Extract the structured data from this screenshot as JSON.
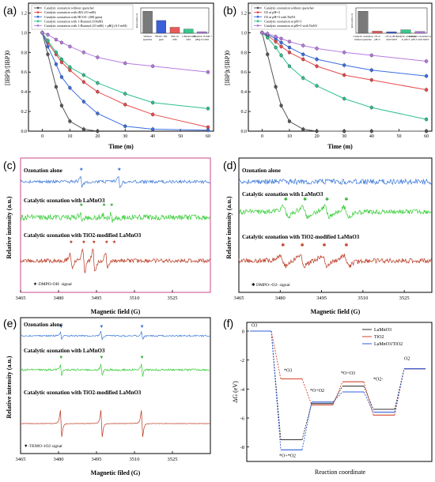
{
  "panels": {
    "a": {
      "label": "(a)",
      "ylabel": "[IBP]t/[IBP]0",
      "xlabel": "Time (m)",
      "legend": [
        "Catalytic ozonation without quencher",
        "Catalytic ozonation with tBA (10 mM)",
        "Catalytic ozonation with HCO3- (300 ppm)",
        "Catalytic ozonation with 1-Butanol (10mM)",
        "Catalytic ozonation with 1-Butanol (10 mM) + pBQ (0.5 mM)"
      ],
      "inset": {
        "ylabel": "kobs (min-1)",
        "categories": [
          "Without quencher",
          "HCO3- 300 ppm",
          "tBA 10 mM",
          "1-Butanol 10 mM",
          "1-Butanol 10 mM + pBQ 0.5 mM"
        ],
        "values": [
          0.13,
          0.075,
          0.035,
          0.024,
          0.009
        ],
        "colors": [
          "#7a7a7a",
          "#3a5fd8",
          "#e85a5a",
          "#34c98a",
          "#b07adf"
        ]
      }
    },
    "b": {
      "label": "(b)",
      "ylabel": "[IBP]t/[IBP]0",
      "xlabel": "Time (m)",
      "legend": [
        "Catalytic ozonation without quencher",
        "O3 at pH=3",
        "O3 at pH=3 with NaN3",
        "Catalytic ozonation at pH=3",
        "Catalytic ozonation at pH=3 with NaN3"
      ],
      "inset": {
        "ylabel": "kobs (min-1)",
        "categories": [
          "Catalytic ozonation without quencher",
          "O3 at pH=3",
          "O3 at pH=3 with NaN3",
          "Catalytic ozonation at pH=3",
          "Catalytic ozonation at pH=3 with NaN3"
        ],
        "values": [
          0.13,
          0.012,
          0.008,
          0.02,
          0.01
        ],
        "colors": [
          "#7a7a7a",
          "#e85a5a",
          "#3a5fd8",
          "#34c98a",
          "#b07adf"
        ]
      }
    },
    "c": {
      "label": "(c)",
      "ylabel": "Relative intensity (a.u.)",
      "xlabel": "Magnetic field (G)",
      "labels": [
        "Ozonation alone",
        "Catalytic ozonation with LaMnO3",
        "Catalytic ozonation with TiO2-modified LaMnO3"
      ],
      "legend": "DMPO-OH· signal"
    },
    "d": {
      "label": "(d)",
      "ylabel": "Relative intensity (a.u.)",
      "xlabel": "Magnetic field (G)",
      "labels": [
        "Ozonation alone",
        "Catalytic ozonation with LaMnO3",
        "Catalytic ozonation with TiO2-modified LaMnO3"
      ],
      "legend": "DMPO--O2- signal"
    },
    "e": {
      "label": "(e)",
      "ylabel": "Relative intensity (a.u.)",
      "xlabel": "Magnetic filed (G)",
      "labels": [
        "Ozonation alone",
        "Catalytic ozonation with LaMnO3",
        "Catalytic ozonation with TiO2-modified LaMnO3"
      ],
      "legend": "TEMO-1O2 signal"
    },
    "f": {
      "label": "(f)",
      "ylabel": "ΔG (eV)",
      "xlabel": "Reaction coordinate",
      "legend": [
        "LaMnO3",
        "TiO2",
        "LaMnO3/TiO2"
      ],
      "annotations": [
        "O3",
        "*O3",
        "*O+O2",
        "*O+O3",
        "*O+*O2",
        "*O2-",
        "O2"
      ]
    }
  },
  "chart_data": [
    {
      "panel": "a",
      "type": "line",
      "x": [
        0,
        2,
        5,
        7,
        10,
        15,
        20,
        30,
        40,
        60
      ],
      "xlim": [
        -5,
        62
      ],
      "ylim": [
        0,
        1.3
      ],
      "xticks": [
        0,
        10,
        20,
        30,
        40,
        50,
        60
      ],
      "yticks": [
        0.0,
        0.2,
        0.4,
        0.6,
        0.8,
        1.0,
        1.2
      ],
      "series": [
        {
          "name": "Catalytic ozonation without quencher",
          "color": "#555555",
          "y": [
            1.0,
            0.78,
            0.45,
            0.26,
            0.1,
            0.02,
            0.0,
            null,
            null,
            null
          ]
        },
        {
          "name": "Catalytic ozonation with tBA (10 mM)",
          "color": "#e84a4a",
          "y": [
            1.0,
            0.9,
            0.78,
            0.7,
            0.62,
            0.5,
            0.4,
            0.27,
            0.17,
            0.04
          ]
        },
        {
          "name": "Catalytic ozonation with HCO3- (300 ppm)",
          "color": "#3a6ee0",
          "y": [
            1.0,
            0.86,
            0.68,
            0.55,
            0.44,
            0.3,
            0.18,
            0.05,
            0.02,
            0.01
          ]
        },
        {
          "name": "Catalytic ozonation with 1-Butanol (10mM)",
          "color": "#2ec08a",
          "y": [
            1.0,
            0.92,
            0.8,
            0.73,
            0.65,
            0.57,
            0.49,
            0.38,
            0.29,
            0.23
          ]
        },
        {
          "name": "Catalytic ozonation with 1-Butanol (10 mM) + pBQ (0.5 mM)",
          "color": "#b57ae0",
          "y": [
            1.0,
            0.98,
            0.93,
            0.9,
            0.86,
            0.8,
            0.75,
            0.69,
            0.66,
            0.6
          ]
        }
      ]
    },
    {
      "panel": "b",
      "type": "line",
      "x": [
        0,
        2,
        5,
        7,
        10,
        15,
        20,
        30,
        40,
        60
      ],
      "xlim": [
        -5,
        62
      ],
      "ylim": [
        0,
        1.3
      ],
      "xticks": [
        0,
        10,
        20,
        30,
        40,
        50,
        60
      ],
      "yticks": [
        0.0,
        0.2,
        0.4,
        0.6,
        0.8,
        1.0,
        1.2
      ],
      "series": [
        {
          "name": "Catalytic ozonation without quencher",
          "color": "#555555",
          "y": [
            1.0,
            0.78,
            0.45,
            0.26,
            0.1,
            0.02,
            0.0,
            0.0,
            0.0,
            0.0
          ]
        },
        {
          "name": "O3 at pH=3",
          "color": "#e84a4a",
          "y": [
            1.0,
            0.97,
            0.91,
            0.86,
            0.8,
            0.73,
            0.66,
            0.57,
            0.52,
            0.42
          ]
        },
        {
          "name": "O3 at pH=3 with NaN3",
          "color": "#3a6ee0",
          "y": [
            1.0,
            0.98,
            0.94,
            0.9,
            0.85,
            0.78,
            0.73,
            0.67,
            0.62,
            0.56
          ]
        },
        {
          "name": "Catalytic ozonation at pH=3",
          "color": "#2ec08a",
          "y": [
            1.0,
            0.95,
            0.85,
            0.77,
            0.66,
            0.54,
            0.46,
            0.33,
            0.24,
            0.12
          ]
        },
        {
          "name": "Catalytic ozonation at pH=3 with NaN3",
          "color": "#b57ae0",
          "y": [
            1.0,
            0.99,
            0.96,
            0.94,
            0.91,
            0.87,
            0.84,
            0.8,
            0.77,
            0.71
          ]
        }
      ]
    },
    {
      "panel": "c",
      "type": "line",
      "xlim": [
        3465,
        3540
      ],
      "xticks": [
        3465,
        3480,
        3495,
        3510,
        3525
      ],
      "series": [
        {
          "name": "Ozonation alone",
          "color": "#3a78d8"
        },
        {
          "name": "Catalytic ozonation with LaMnO3",
          "color": "#33cc33"
        },
        {
          "name": "Catalytic ozonation with TiO2-modified LaMnO3",
          "color": "#b8361e"
        }
      ]
    },
    {
      "panel": "d",
      "type": "line",
      "xlim": [
        3465,
        3535
      ],
      "xticks": [
        3465,
        3480,
        3495,
        3510,
        3525
      ],
      "series": [
        {
          "name": "Ozonation alone",
          "color": "#3a78d8"
        },
        {
          "name": "Catalytic ozonation with LaMnO3",
          "color": "#33cc33"
        },
        {
          "name": "Catalytic ozonation with TiO2-modified LaMnO3",
          "color": "#b8361e"
        }
      ]
    },
    {
      "panel": "e",
      "type": "line",
      "xlim": [
        3465,
        3540
      ],
      "xticks": [
        3465,
        3480,
        3495,
        3510,
        3525
      ],
      "series": [
        {
          "name": "Ozonation alone",
          "color": "#3a78d8"
        },
        {
          "name": "Catalytic ozonation with LaMnO3",
          "color": "#33cc33"
        },
        {
          "name": "Catalytic ozonation with TiO2-modified LaMnO3",
          "color": "#b8361e"
        }
      ]
    },
    {
      "panel": "f",
      "type": "line",
      "ylim": [
        -9,
        0.6
      ],
      "yticks": [
        0,
        -2,
        -4,
        -6,
        -8
      ],
      "states": [
        "O3",
        "*O3",
        "*O+O2",
        "*O+O3",
        "*O+*O2",
        "O2"
      ],
      "series": [
        {
          "name": "LaMnO3",
          "color": "#333333",
          "values": [
            0,
            -7.5,
            -5.0,
            -3.8,
            -5.4,
            -2.6
          ]
        },
        {
          "name": "TiO2",
          "color": "#d2452e",
          "values": [
            0,
            -3.3,
            -5.1,
            -3.5,
            -5.8,
            -2.6
          ]
        },
        {
          "name": "LaMnO3/TiO2",
          "color": "#2f5ee0",
          "values": [
            0,
            -8.2,
            -4.9,
            -4.2,
            -5.6,
            -2.6
          ]
        }
      ]
    }
  ]
}
